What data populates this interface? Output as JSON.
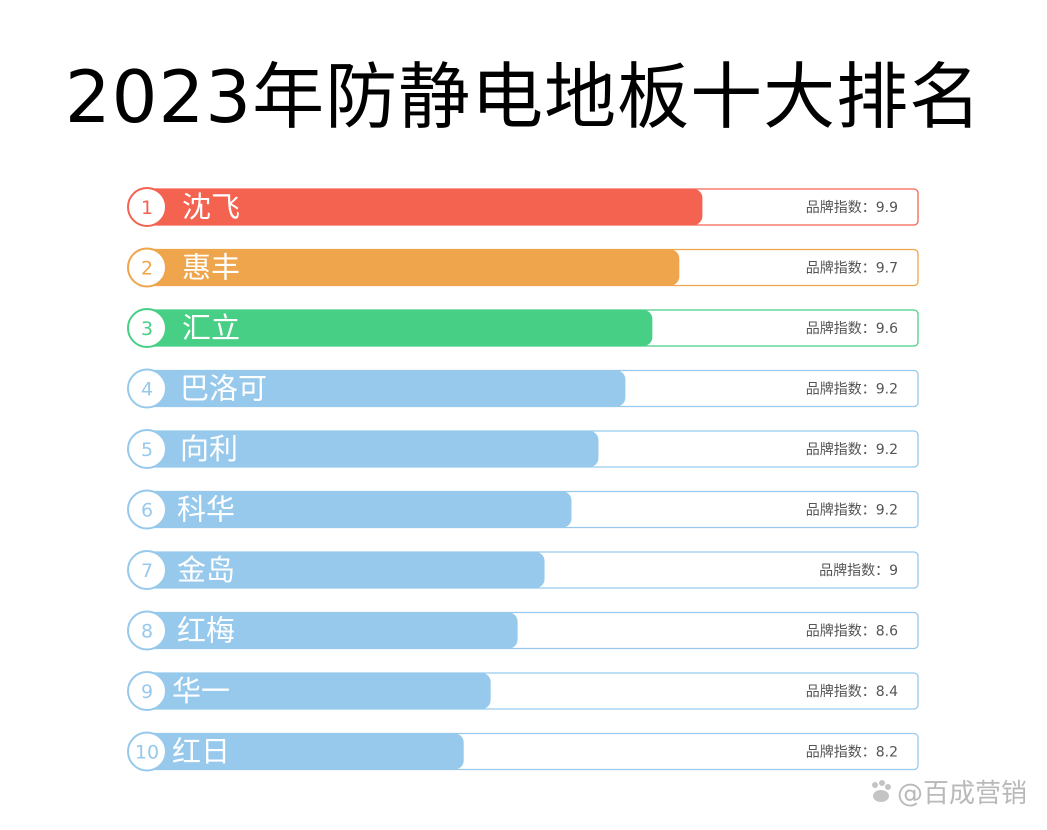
{
  "title": "2023年防静电地板十大排名",
  "index_label": "品牌指数：",
  "watermark": "@百成营销",
  "colors": {
    "rank1": "#f46350",
    "rank2": "#eea54b",
    "rank3": "#48cf86",
    "default": "#97c9ec"
  },
  "chart_data": {
    "type": "bar",
    "orientation": "horizontal",
    "title": "2023年防静电地板十大排名",
    "categories": [
      "沈飞",
      "惠丰",
      "汇立",
      "巴洛可",
      "向利",
      "科华",
      "金岛",
      "红梅",
      "华一",
      "红日"
    ],
    "ranks": [
      "1",
      "2",
      "3",
      "4",
      "5",
      "6",
      "7",
      "8",
      "9",
      "10"
    ],
    "values": [
      9.9,
      9.7,
      9.6,
      9.2,
      9.2,
      9.2,
      9,
      8.6,
      8.4,
      8.2
    ],
    "value_labels": [
      "9.9",
      "9.7",
      "9.6",
      "9.2",
      "9.2",
      "9.2",
      "9",
      "8.6",
      "8.4",
      "8.2"
    ],
    "bar_fill": [
      0.72,
      0.69,
      0.655,
      0.62,
      0.585,
      0.55,
      0.515,
      0.48,
      0.445,
      0.41
    ],
    "grid": false,
    "legend": "none"
  }
}
